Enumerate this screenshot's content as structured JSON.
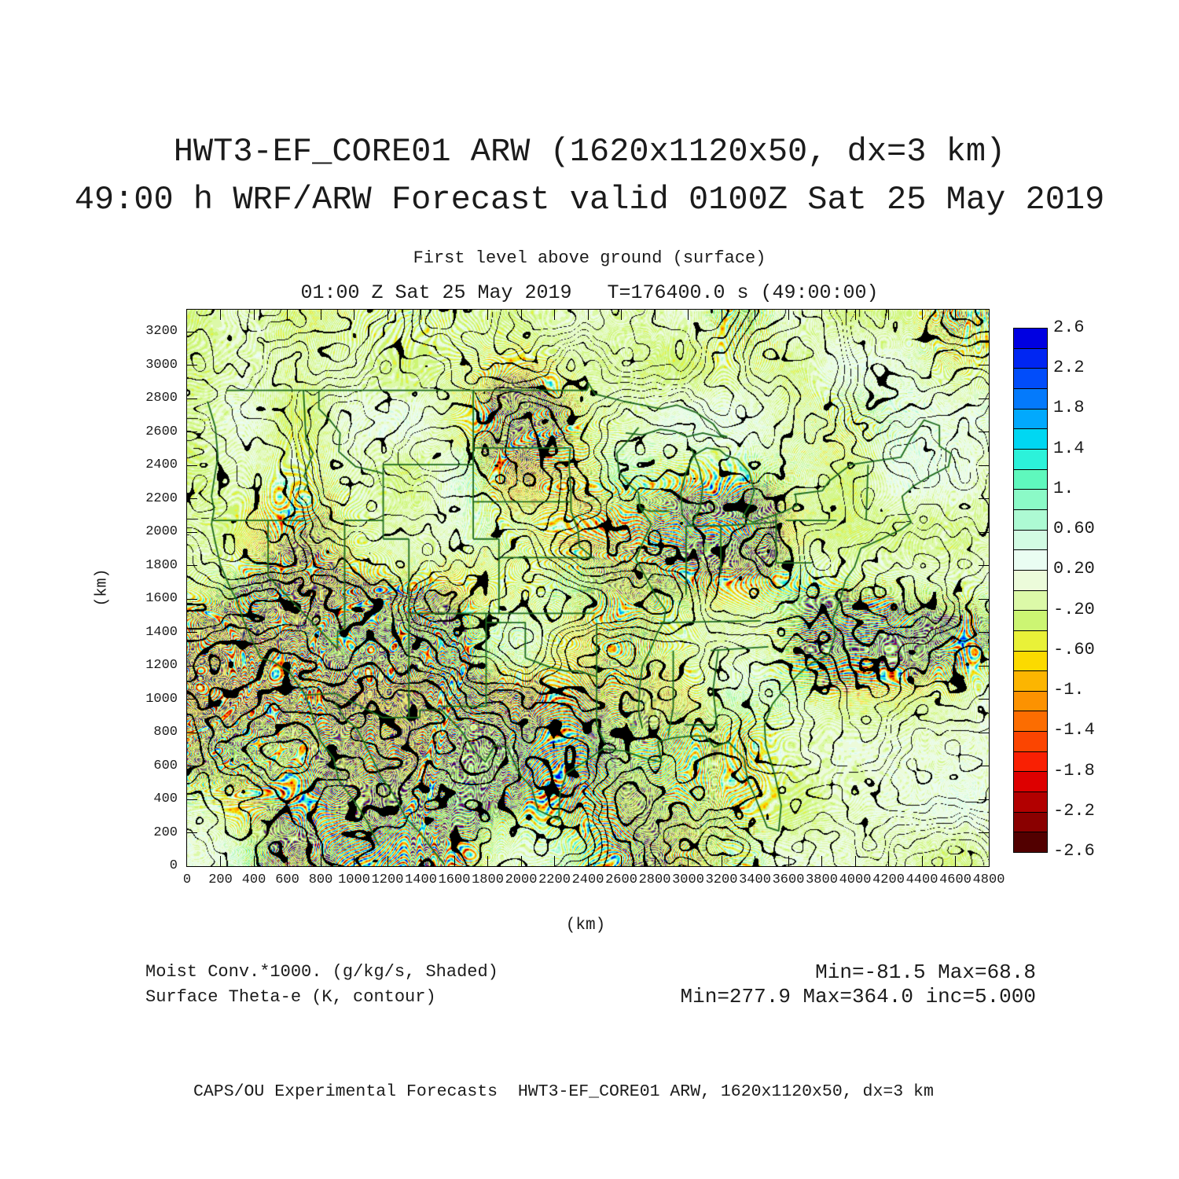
{
  "header": {
    "title_line1": "HWT3-EF_CORE01 ARW (1620x1120x50, dx=3 km)",
    "title_line2": "49:00 h WRF/ARW Forecast valid 0100Z Sat 25 May 2019",
    "level_line": "First level above ground (surface)",
    "valid_line": "01:00 Z Sat 25 May 2019   T=176400.0 s (49:00:00)"
  },
  "chart_data": {
    "type": "heatmap",
    "title": "HWT3-EF_CORE01 ARW (1620x1120x50, dx=3 km)",
    "subtitle": "49:00 h WRF/ARW Forecast valid 0100Z Sat 25 May 2019",
    "level": "First level above ground (surface)",
    "valid_time": "01:00 Z Sat 25 May 2019",
    "model_time": "T=176400.0 s (49:00:00)",
    "xlabel": "(km)",
    "ylabel": "(km)",
    "xlim": [
      0,
      4800
    ],
    "ylim": [
      0,
      3360
    ],
    "grid": false,
    "x_ticks": [
      0,
      200,
      400,
      600,
      800,
      1000,
      1200,
      1400,
      1600,
      1800,
      2000,
      2200,
      2400,
      2600,
      2800,
      3000,
      3200,
      3400,
      3600,
      3800,
      4000,
      4200,
      4400,
      4600,
      4800
    ],
    "y_ticks": [
      0,
      200,
      400,
      600,
      800,
      1000,
      1200,
      1400,
      1600,
      1800,
      2000,
      2200,
      2400,
      2600,
      2800,
      3000,
      3200
    ],
    "shaded_field": {
      "name": "Moist Conv.*1000.",
      "units": "g/kg/s",
      "style": "Shaded",
      "min": -81.5,
      "max": 68.8
    },
    "contour_field": {
      "name": "Surface Theta-e",
      "units": "K",
      "style": "contour",
      "min": 277.9,
      "max": 364.0,
      "increment": 5.0
    },
    "colorbar": {
      "position": "right",
      "tick_labels": [
        "2.6",
        "2.2",
        "1.8",
        "1.4",
        "1.",
        "0.60",
        "0.20",
        "-.20",
        "-.60",
        "-1.",
        "-1.4",
        "-1.8",
        "-2.2",
        "-2.6"
      ],
      "levels": [
        2.6,
        2.4,
        2.2,
        2.0,
        1.8,
        1.6,
        1.4,
        1.2,
        1.0,
        0.8,
        0.6,
        0.4,
        0.2,
        0.0,
        -0.2,
        -0.4,
        -0.6,
        -0.8,
        -1.0,
        -1.2,
        -1.4,
        -1.6,
        -1.8,
        -2.0,
        -2.2,
        -2.4,
        -2.6
      ],
      "segment_colors": [
        "#0000e1",
        "#0026f2",
        "#014dfa",
        "#047afc",
        "#02a9fd",
        "#00d7f2",
        "#2cf2da",
        "#5ff8bd",
        "#8bfac7",
        "#adfad3",
        "#d2fbe3",
        "#eafdf2",
        "#ecfbda",
        "#dcf9a8",
        "#ccf573",
        "#e9f138",
        "#fbda00",
        "#fcb501",
        "#fc9201",
        "#fc6d01",
        "#fb4501",
        "#f92003",
        "#dd0000",
        "#b20000",
        "#8a0000",
        "#520000"
      ]
    },
    "map_colors": {
      "contour": "#000000",
      "geography": "#1d6b1d",
      "frame": "#000000",
      "text": "#1b1b1b"
    }
  },
  "legend": {
    "shaded_label": "Moist Conv.*1000. (g/kg/s, Shaded)",
    "contour_label": "Surface Theta-e (K, contour)",
    "shaded_stats": "Min=-81.5 Max=68.8",
    "contour_stats": "Min=277.9 Max=364.0 inc=5.000"
  },
  "footer": {
    "credit": "CAPS/OU Experimental Forecasts  HWT3-EF_CORE01 ARW, 1620x1120x50, dx=3 km"
  }
}
